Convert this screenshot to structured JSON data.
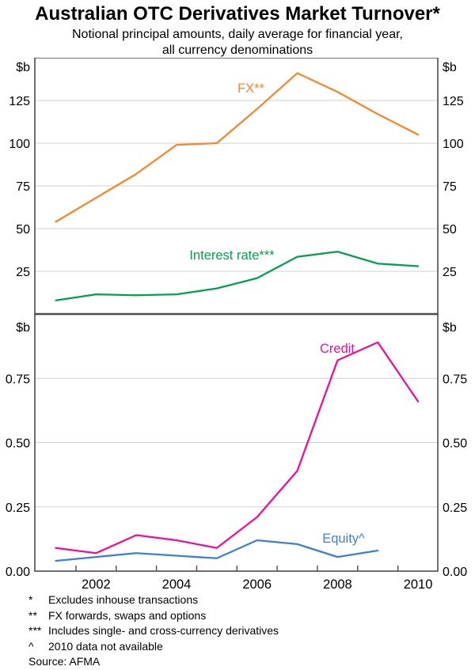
{
  "title": "Australian OTC Derivatives Market Turnover*",
  "subtitle_line1": "Notional principal amounts, daily average for financial year,",
  "subtitle_line2": "all currency denominations",
  "unit_label": "$b",
  "footnotes": [
    {
      "marker": "*",
      "text": "Excludes inhouse transactions"
    },
    {
      "marker": "**",
      "text": "FX forwards, swaps and options"
    },
    {
      "marker": "***",
      "text": "Includes single- and cross-currency derivatives"
    },
    {
      "marker": "^",
      "text": "2010 data not available"
    }
  ],
  "source": "Source: AFMA",
  "colors": {
    "fx": "#F6882B",
    "interest_rate": "#00A14F",
    "credit": "#EE0E9C",
    "equity": "#3C80D0",
    "grid": "#D0D0D0",
    "frame": "#4D4D4D"
  },
  "x_axis": {
    "years": [
      2001,
      2002,
      2003,
      2004,
      2005,
      2006,
      2007,
      2008,
      2009,
      2010
    ],
    "labeled_years": [
      "2002",
      "2004",
      "2006",
      "2008",
      "2010"
    ]
  },
  "chart_data": [
    {
      "type": "line",
      "panel": "top",
      "unit": "$b",
      "ylim": [
        0,
        150
      ],
      "grid": true,
      "yticks": [
        {
          "v": 25,
          "label": "25"
        },
        {
          "v": 50,
          "label": "50"
        },
        {
          "v": 75,
          "label": "75"
        },
        {
          "v": 100,
          "label": "100"
        },
        {
          "v": 125,
          "label": "125"
        }
      ],
      "x": [
        2001,
        2002,
        2003,
        2004,
        2005,
        2006,
        2007,
        2008,
        2009,
        2010
      ],
      "series": [
        {
          "name": "FX**",
          "color_key": "fx",
          "values": [
            54,
            68,
            82,
            99,
            100,
            120,
            141,
            130,
            117,
            105
          ]
        },
        {
          "name": "Interest rate***",
          "color_key": "interest_rate",
          "values": [
            8,
            11.5,
            11,
            11.5,
            15,
            21,
            33.5,
            36.5,
            29.5,
            28
          ]
        }
      ]
    },
    {
      "type": "line",
      "panel": "bottom",
      "unit": "$b",
      "ylim": [
        0,
        1.0
      ],
      "grid": true,
      "yticks": [
        {
          "v": 0,
          "label": "0.00"
        },
        {
          "v": 0.25,
          "label": "0.25"
        },
        {
          "v": 0.5,
          "label": "0.50"
        },
        {
          "v": 0.75,
          "label": "0.75"
        }
      ],
      "x": [
        2001,
        2002,
        2003,
        2004,
        2005,
        2006,
        2007,
        2008,
        2009,
        2010
      ],
      "series": [
        {
          "name": "Credit",
          "color_key": "credit",
          "values": [
            0.09,
            0.07,
            0.14,
            0.12,
            0.09,
            0.21,
            0.39,
            0.82,
            0.89,
            0.66
          ]
        },
        {
          "name": "Equity^",
          "color_key": "equity",
          "values": [
            0.04,
            0.055,
            0.07,
            0.06,
            0.05,
            0.12,
            0.105,
            0.055,
            0.08
          ]
        }
      ]
    }
  ]
}
